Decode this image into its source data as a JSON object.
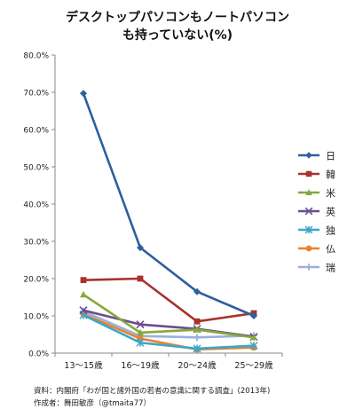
{
  "chart_data": {
    "type": "line",
    "title": "デスクトップパソコンもノートパソコン",
    "title_line2": "も持っていない(%)",
    "categories": [
      "13〜15歳",
      "16〜19歳",
      "20〜24歳",
      "25〜29歳"
    ],
    "ylim": [
      0,
      80
    ],
    "yticks": [
      "0.0%",
      "10.0%",
      "20.0%",
      "30.0%",
      "40.0%",
      "50.0%",
      "60.0%",
      "70.0%",
      "80.0%"
    ],
    "grid": false,
    "legend_position": "right",
    "series": [
      {
        "name": "日",
        "color": "#2e5f9e",
        "marker": "diamond",
        "values": [
          69.7,
          28.3,
          16.5,
          10.0
        ]
      },
      {
        "name": "韓",
        "color": "#a8322c",
        "marker": "square",
        "values": [
          19.6,
          20.0,
          8.5,
          10.7
        ]
      },
      {
        "name": "米",
        "color": "#86a83a",
        "marker": "triangle",
        "values": [
          15.7,
          5.5,
          6.3,
          4.2
        ]
      },
      {
        "name": "英",
        "color": "#6b4c8e",
        "marker": "x",
        "values": [
          11.5,
          7.7,
          6.5,
          4.4
        ]
      },
      {
        "name": "独",
        "color": "#3ea6c8",
        "marker": "star",
        "values": [
          10.2,
          2.8,
          1.2,
          2.0
        ]
      },
      {
        "name": "仏",
        "color": "#e8832a",
        "marker": "circle",
        "values": [
          10.5,
          3.9,
          1.0,
          1.5
        ]
      },
      {
        "name": "瑞",
        "color": "#9bb0d8",
        "marker": "plus",
        "values": [
          11.2,
          4.6,
          4.2,
          4.7
        ]
      }
    ]
  },
  "source": {
    "line1": "資料：内閣府「わが国と諸外国の若者の意識に関する調査」(2013年)",
    "line2": "作成者：舞田敏彦（@tmaita77）"
  }
}
